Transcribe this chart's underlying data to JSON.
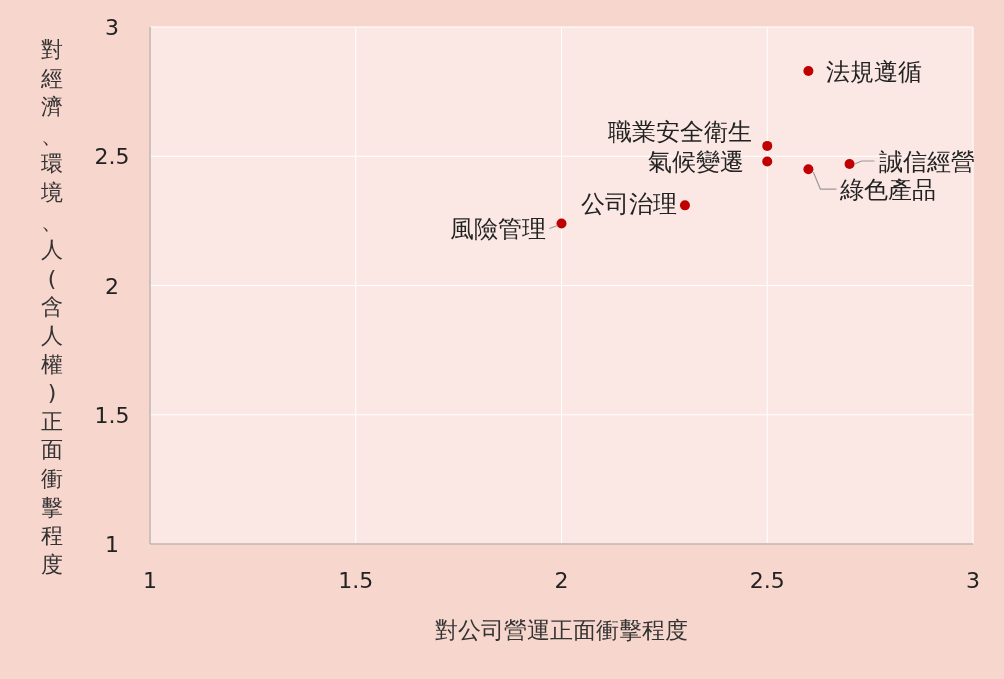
{
  "chart_data": {
    "type": "scatter",
    "xlabel": "對公司營運正面衝擊程度",
    "ylabel": "對經濟、環境、人(含人權)正面衝擊程度",
    "xlim": [
      1,
      3
    ],
    "ylim": [
      1,
      3
    ],
    "xticks": [
      1,
      1.5,
      2,
      2.5,
      3
    ],
    "yticks": [
      1,
      1.5,
      2,
      2.5,
      3
    ],
    "grid": true,
    "marker": "circle",
    "series": [
      {
        "color": "#c00000",
        "x": [
          2.6,
          2.5,
          2.5,
          2.6,
          2.7,
          2.3,
          2.0
        ],
        "values": [
          2.83,
          2.54,
          2.48,
          2.45,
          2.47,
          2.31,
          2.24
        ]
      }
    ],
    "annotations": [
      {
        "text": "法規遵循",
        "x": 2.6,
        "y": 2.83
      },
      {
        "text": "職業安全衛生",
        "x": 2.5,
        "y": 2.54
      },
      {
        "text": "氣候變遷",
        "x": 2.5,
        "y": 2.48
      },
      {
        "text": "綠色產品",
        "x": 2.6,
        "y": 2.45
      },
      {
        "text": "誠信經營",
        "x": 2.7,
        "y": 2.47
      },
      {
        "text": "公司治理",
        "x": 2.3,
        "y": 2.31
      },
      {
        "text": "風險管理",
        "x": 2.0,
        "y": 2.24
      }
    ]
  }
}
